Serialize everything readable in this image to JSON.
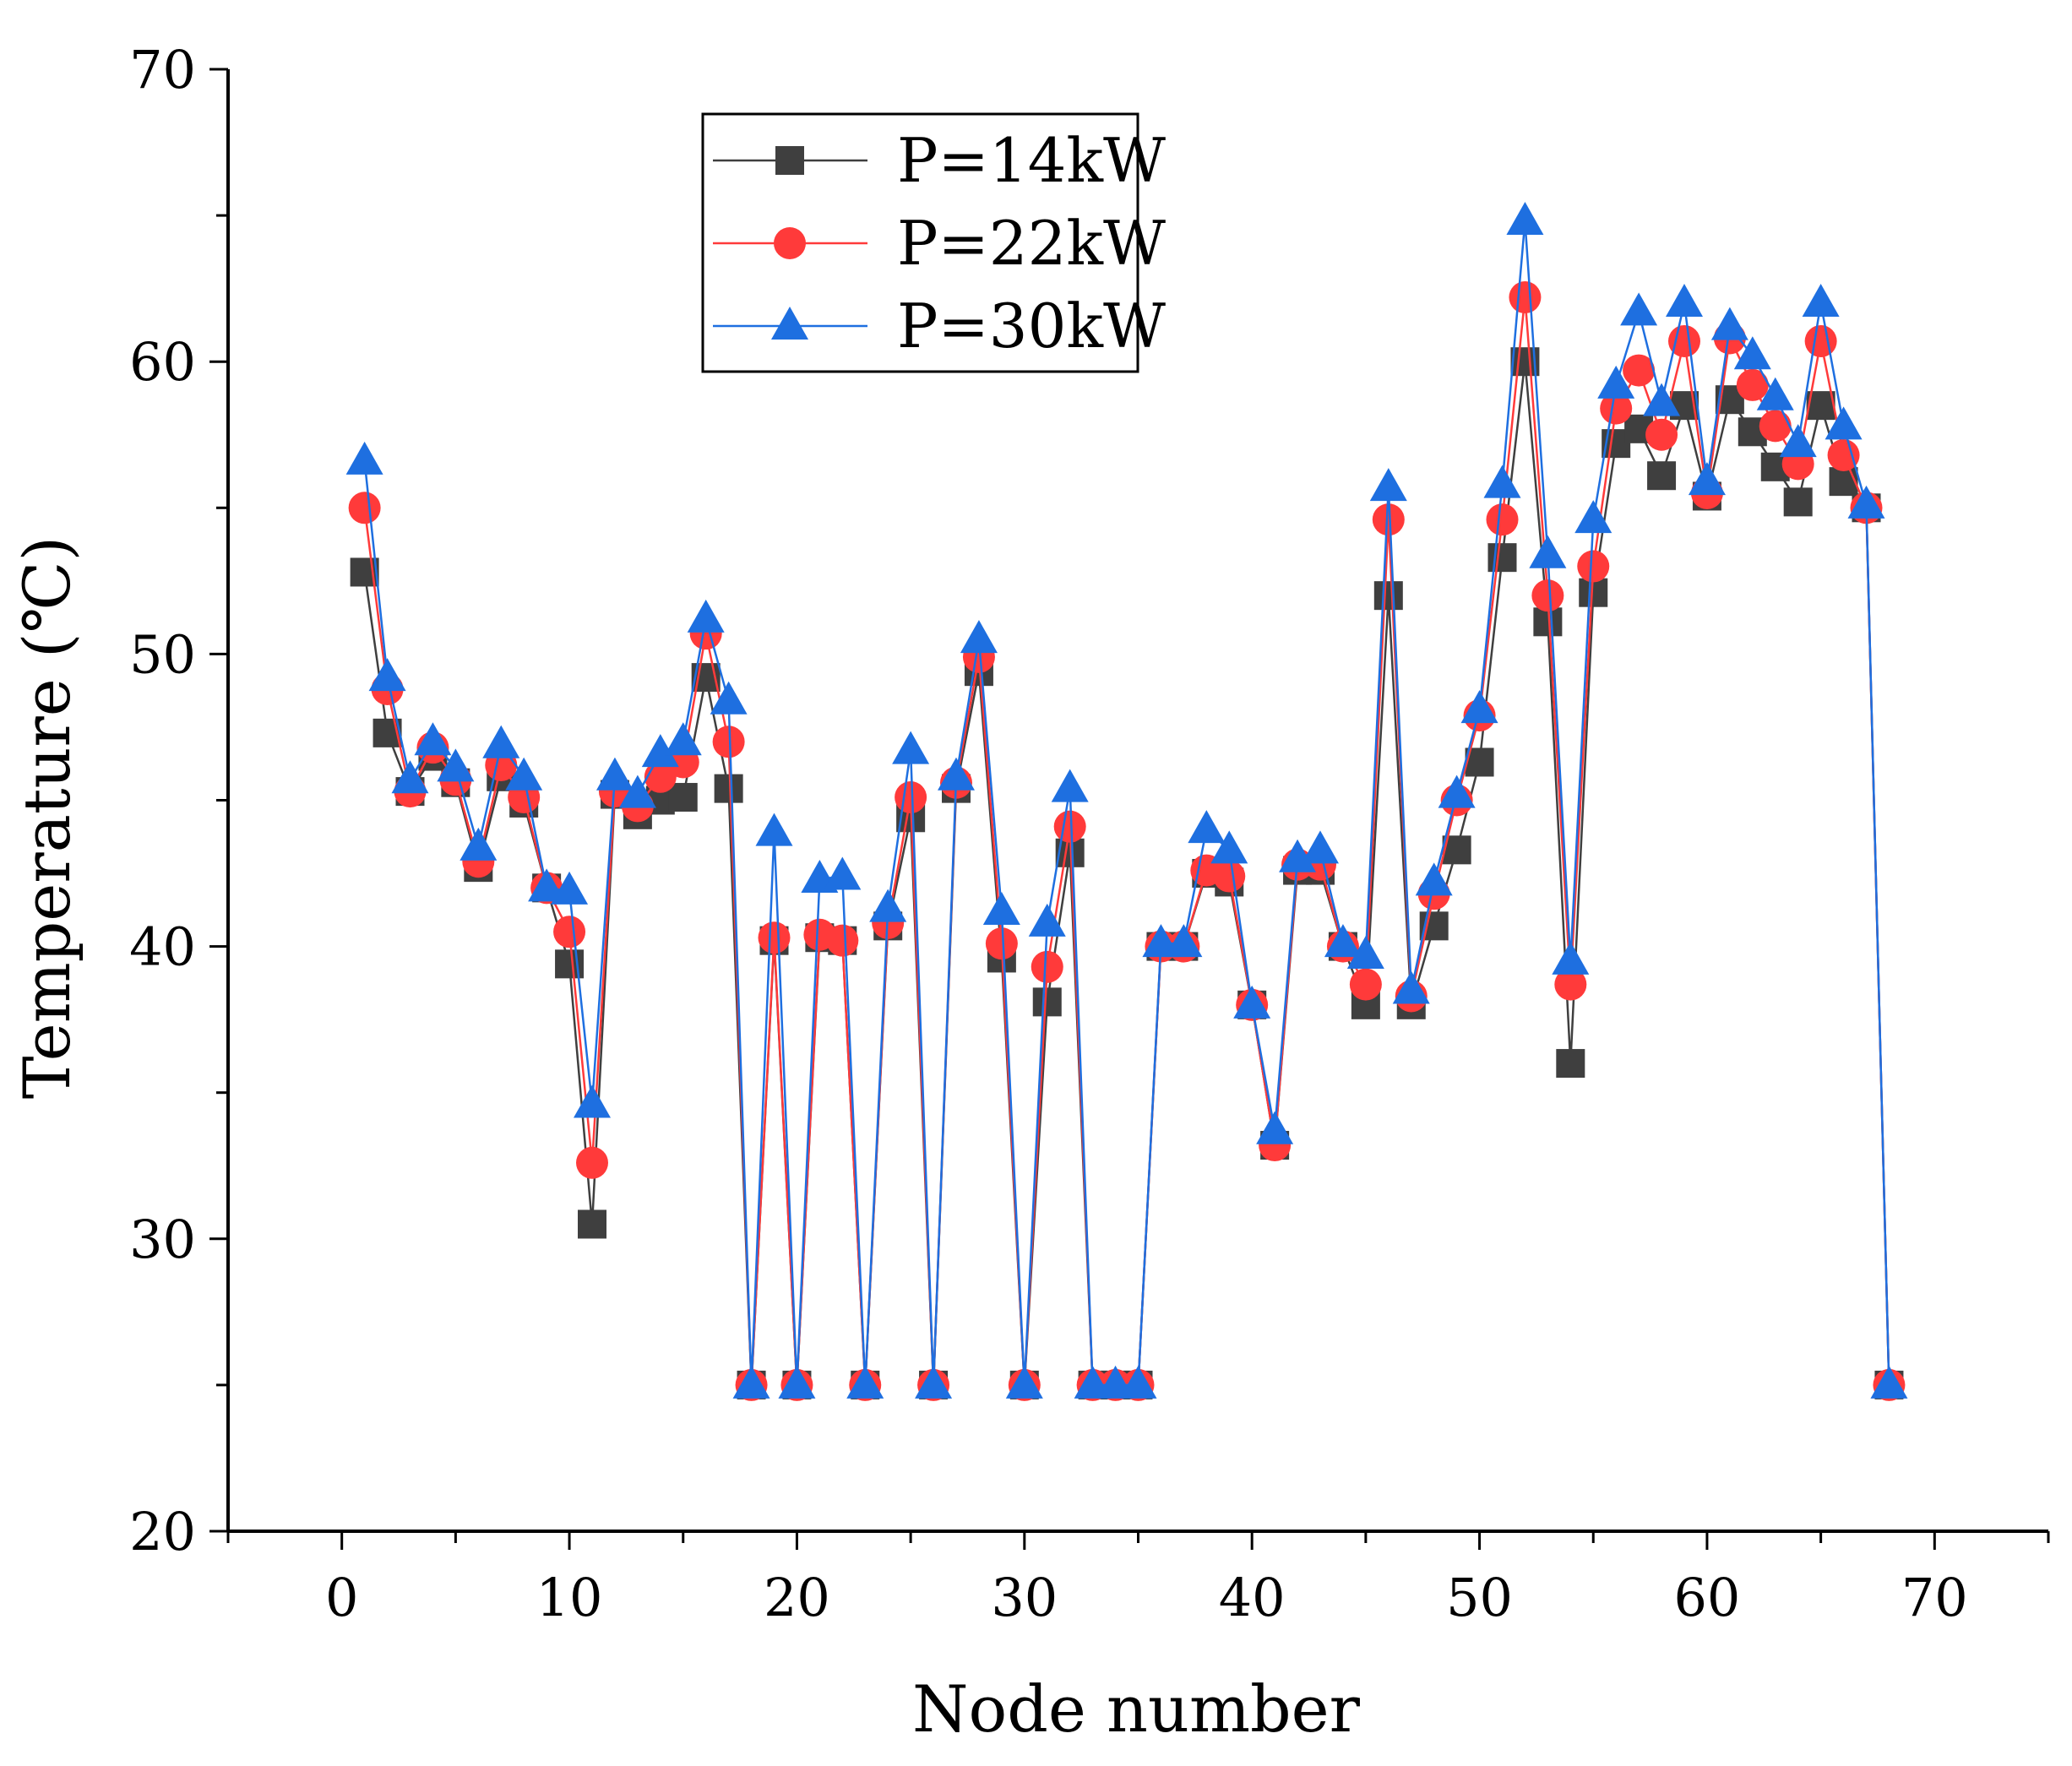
{
  "chart_data": {
    "type": "line",
    "title": "",
    "xlabel": "Node number",
    "ylabel": "Temperature (℃)",
    "xlim": [
      -5,
      75
    ],
    "ylim": [
      20,
      70
    ],
    "xticks": [
      0,
      10,
      20,
      30,
      40,
      50,
      60,
      70
    ],
    "yticks": [
      20,
      30,
      40,
      50,
      60,
      70
    ],
    "legend_position": "top-center",
    "x": [
      1,
      2,
      3,
      4,
      5,
      6,
      7,
      8,
      9,
      10,
      11,
      12,
      13,
      14,
      15,
      16,
      17,
      18,
      19,
      20,
      21,
      22,
      23,
      24,
      25,
      26,
      27,
      28,
      29,
      30,
      31,
      32,
      33,
      34,
      35,
      36,
      37,
      38,
      39,
      40,
      41,
      42,
      43,
      44,
      45,
      46,
      47,
      48,
      49,
      50,
      51,
      52,
      53,
      54,
      55,
      56,
      57,
      58,
      59,
      60,
      61,
      62,
      63,
      64,
      65,
      66,
      67,
      68
    ],
    "series": [
      {
        "name": "P=14kW",
        "color": "#3f3f3f",
        "marker": "square",
        "values": [
          52.8,
          47.3,
          45.3,
          46.5,
          45.6,
          42.7,
          45.8,
          44.9,
          42.0,
          39.4,
          30.5,
          45.2,
          44.5,
          45.0,
          45.1,
          49.2,
          45.4,
          25.0,
          40.2,
          25.0,
          40.3,
          40.2,
          25.0,
          40.7,
          44.4,
          25.0,
          45.4,
          49.4,
          39.6,
          25.0,
          38.1,
          43.2,
          25.0,
          25.0,
          25.0,
          40.0,
          40.0,
          42.5,
          42.2,
          38.0,
          33.2,
          42.6,
          42.6,
          40.0,
          38.0,
          52.0,
          38.0,
          40.7,
          43.3,
          46.3,
          53.3,
          60.0,
          51.1,
          36.0,
          52.1,
          57.2,
          57.7,
          56.1,
          58.5,
          55.4,
          58.7,
          57.6,
          56.4,
          55.2,
          58.5,
          55.9,
          55.0,
          25.0
        ]
      },
      {
        "name": "P=22kW",
        "color": "#ff3a3a",
        "marker": "circle",
        "values": [
          55.0,
          48.8,
          45.3,
          46.8,
          45.7,
          42.9,
          46.2,
          45.1,
          42.0,
          40.5,
          32.6,
          45.3,
          44.8,
          45.8,
          46.3,
          50.7,
          47.0,
          25.0,
          40.3,
          25.0,
          40.4,
          40.2,
          25.0,
          40.8,
          45.1,
          25.0,
          45.6,
          49.9,
          40.1,
          25.0,
          39.3,
          44.1,
          25.0,
          25.0,
          25.0,
          40.0,
          40.0,
          42.6,
          42.4,
          38.0,
          33.2,
          42.8,
          42.8,
          40.0,
          38.7,
          54.6,
          38.3,
          41.8,
          45.0,
          47.9,
          54.6,
          62.2,
          52.0,
          38.7,
          53.0,
          58.4,
          59.7,
          57.5,
          60.7,
          55.5,
          60.8,
          59.2,
          57.8,
          56.5,
          60.7,
          56.8,
          55.0,
          25.0
        ]
      },
      {
        "name": "P=30kW",
        "color": "#1e6fe0",
        "marker": "triangle",
        "values": [
          56.6,
          49.2,
          45.7,
          47.0,
          46.1,
          43.4,
          46.9,
          45.8,
          42.0,
          41.9,
          34.6,
          45.8,
          45.2,
          46.6,
          47.0,
          51.2,
          48.4,
          25.0,
          43.9,
          25.0,
          42.3,
          42.4,
          25.0,
          41.3,
          46.7,
          25.0,
          45.8,
          50.5,
          41.2,
          25.0,
          40.8,
          45.4,
          25.0,
          25.0,
          25.0,
          40.1,
          40.1,
          44.0,
          43.3,
          38.0,
          33.7,
          43.0,
          43.3,
          40.1,
          39.7,
          55.7,
          38.5,
          42.2,
          45.2,
          48.1,
          55.8,
          64.8,
          53.4,
          39.5,
          54.6,
          59.2,
          61.7,
          58.6,
          62.0,
          55.9,
          61.2,
          60.2,
          58.8,
          57.2,
          62.0,
          57.8,
          55.1,
          25.0
        ]
      }
    ]
  }
}
